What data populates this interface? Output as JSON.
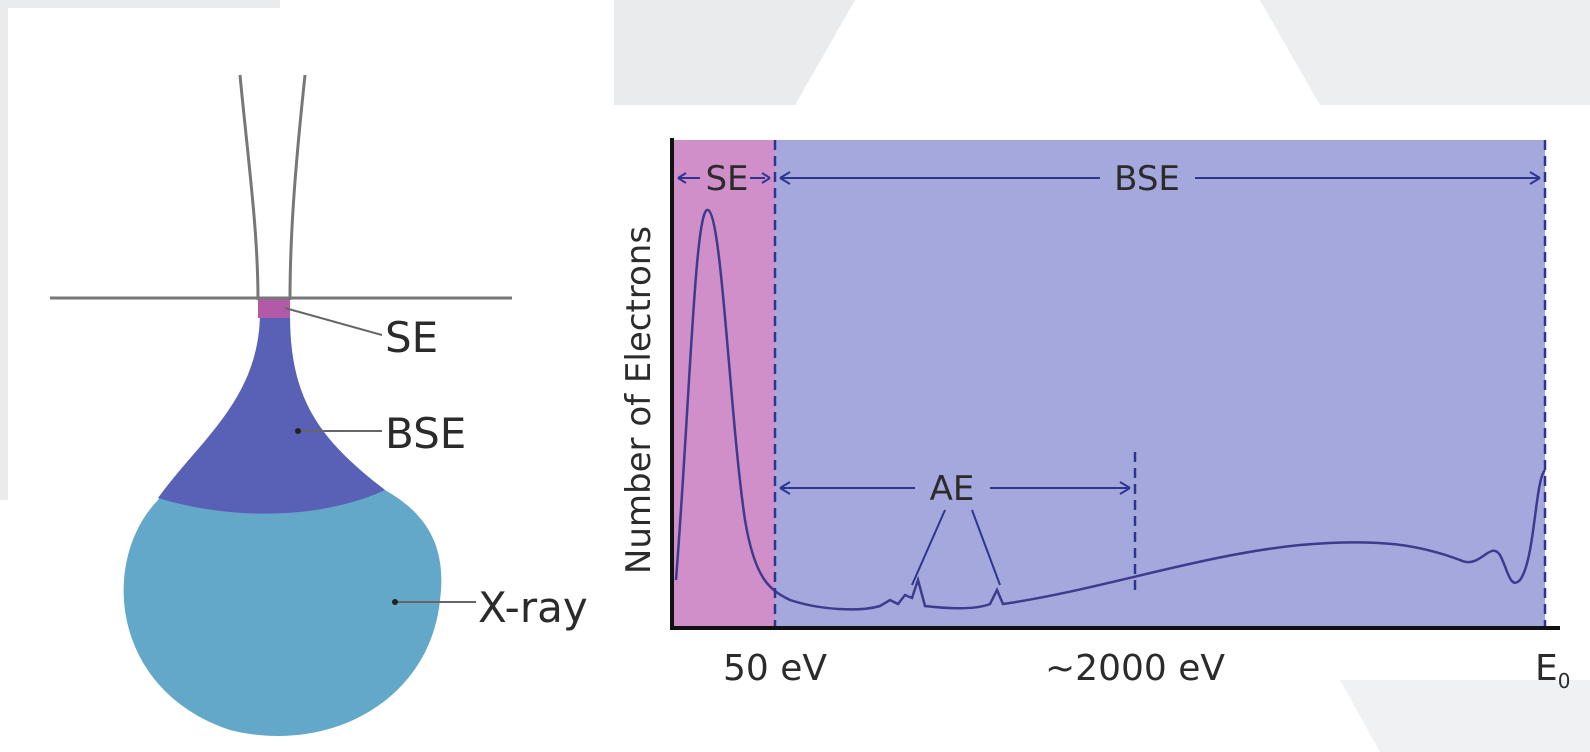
{
  "interaction_volume": {
    "labels": [
      "SE",
      "BSE",
      "X-ray"
    ]
  },
  "spectrum": {
    "y_label": "Number of Electrons",
    "regions": [
      "SE",
      "BSE",
      "AE"
    ],
    "x_labels": [
      "50 eV",
      "~2000 eV"
    ],
    "x_end": {
      "base": "E",
      "subscript": "0"
    }
  }
}
